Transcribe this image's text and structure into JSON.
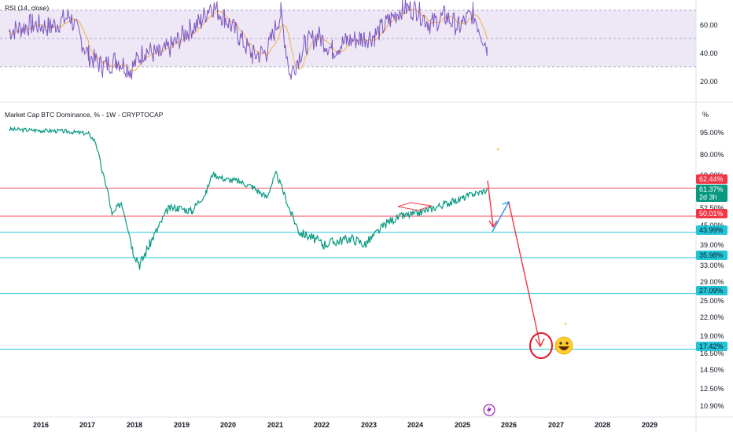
{
  "rsi_panel": {
    "title": "RSI (14, close)",
    "ticks": [
      "60.00",
      "40.00",
      "20.00"
    ],
    "band_upper": 70,
    "band_mid": 50,
    "band_lower": 30,
    "colors": {
      "line": "#7e57c2",
      "ma": "#f5b041",
      "band": "#ede7f6"
    }
  },
  "main_panel": {
    "title": "Market Cap BTC Dominance, % - 1W - CRYPTOCAP",
    "unit_label": "%",
    "price_ticks": [
      "95.00%",
      "80.00%",
      "69.00%",
      "52.50%",
      "45.00%",
      "39.00%",
      "33.00%",
      "29.00%",
      "25.00%",
      "22.00%",
      "19.00%",
      "16.50%",
      "14.50%",
      "12.50%",
      "10.90%"
    ],
    "badges": [
      {
        "text": "62.44%",
        "color": "#f23645",
        "value": 62.44
      },
      {
        "text": "61.37%",
        "sub": "2d 3h",
        "color": "#089981",
        "value": 61.37
      },
      {
        "text": "50.01%",
        "color": "#f23645",
        "value": 50.01
      },
      {
        "text": "43.99%",
        "color": "#22c5d8",
        "value": 43.99
      },
      {
        "text": "35.98%",
        "color": "#22c5d8",
        "value": 35.98
      },
      {
        "text": "27.09%",
        "color": "#22c5d8",
        "value": 27.09
      },
      {
        "text": "17.42%",
        "color": "#22c5d8",
        "value": 17.42
      }
    ],
    "hlines": [
      {
        "value": 62.44,
        "color": "#f7525f"
      },
      {
        "value": 50.01,
        "color": "#f7525f"
      },
      {
        "value": 43.99,
        "color": "#22c5d8"
      },
      {
        "value": 35.98,
        "color": "#22c5d8"
      },
      {
        "value": 27.09,
        "color": "#22c5d8"
      },
      {
        "value": 17.42,
        "color": "#22c5d8"
      }
    ]
  },
  "x_axis": {
    "labels": [
      "2016",
      "2017",
      "2018",
      "2019",
      "2020",
      "2021",
      "2022",
      "2023",
      "2024",
      "2025",
      "2026",
      "2027",
      "2028",
      "2029"
    ]
  },
  "icons": {
    "emoji": "smiley-emoji-icon",
    "logo": "bolt-icon"
  },
  "chart_data": {
    "type": "line",
    "title": "Market Cap BTC Dominance, % - 1W - CRYPTOCAP",
    "xlabel": "",
    "ylabel": "%",
    "y_scale": "log",
    "ylim": [
      10.0,
      115.0
    ],
    "x_range": [
      "2015-06",
      "2029-12"
    ],
    "series": [
      {
        "name": "",
        "x": [
          2015.3,
          2016.0,
          2016.5,
          2017.0,
          2017.15,
          2017.3,
          2017.4,
          2017.5,
          2017.7,
          2017.95,
          2018.1,
          2018.3,
          2018.5,
          2018.7,
          2018.9,
          2019.2,
          2019.5,
          2019.65,
          2019.9,
          2020.2,
          2020.5,
          2020.8,
          2021.0,
          2021.3,
          2021.5,
          2021.8,
          2022.0,
          2022.3,
          2022.6,
          2022.9,
          2023.1,
          2023.4,
          2023.7,
          2024.0,
          2024.3,
          2024.6,
          2024.9,
          2025.2,
          2025.5
        ],
        "values": [
          99.5,
          98.5,
          98.0,
          96.0,
          90.0,
          70.0,
          62.0,
          50.0,
          56.0,
          38.0,
          34.0,
          40.0,
          46.0,
          53.0,
          53.5,
          52.0,
          60.0,
          70.0,
          67.0,
          66.0,
          63.0,
          58.0,
          70.0,
          52.0,
          44.0,
          42.0,
          40.0,
          41.0,
          42.0,
          40.0,
          43.0,
          48.0,
          50.0,
          51.0,
          53.0,
          55.0,
          57.0,
          59.5,
          61.37
        ]
      }
    ],
    "rsi_series": {
      "name": "RSI (14, close)",
      "x": [
        2015.3,
        2015.8,
        2016.2,
        2016.6,
        2017.0,
        2017.3,
        2017.6,
        2017.9,
        2018.2,
        2018.5,
        2018.8,
        2019.1,
        2019.4,
        2019.6,
        2019.9,
        2020.2,
        2020.5,
        2020.8,
        2021.1,
        2021.3,
        2021.6,
        2021.9,
        2022.2,
        2022.5,
        2022.8,
        2023.1,
        2023.4,
        2023.7,
        2024.0,
        2024.3,
        2024.6,
        2024.9,
        2025.2,
        2025.5
      ],
      "values": [
        55,
        60,
        58,
        66,
        38,
        30,
        35,
        28,
        42,
        38,
        45,
        55,
        62,
        74,
        65,
        52,
        38,
        40,
        68,
        24,
        45,
        52,
        42,
        48,
        50,
        52,
        62,
        72,
        70,
        60,
        66,
        58,
        68,
        44
      ]
    }
  }
}
